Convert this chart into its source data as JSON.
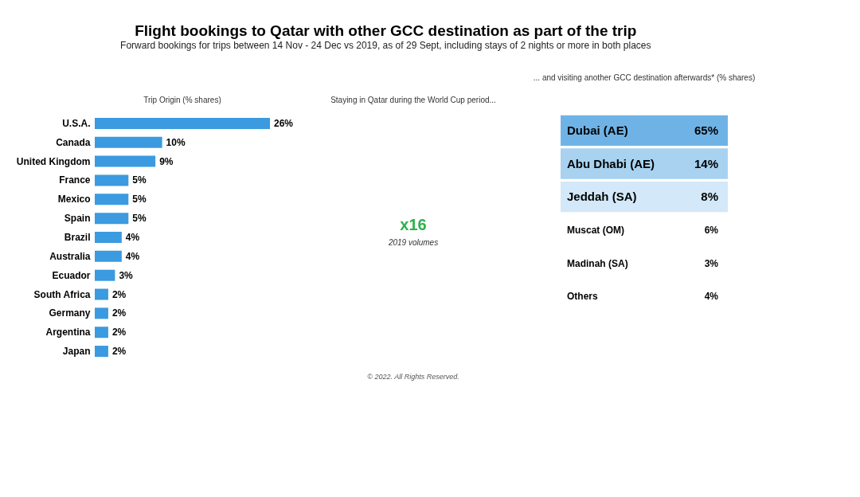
{
  "chart_data": [
    {
      "type": "bar",
      "orientation": "horizontal",
      "title": "Flight bookings to Qatar with other GCC destination as part of the trip",
      "subtitle": "Forward bookings for trips between 14 Nov - 24 Dec vs 2019, as of 29 Sept, including stays of 2 nights or more in both places",
      "xlabel": "Trip Origin (% shares)",
      "categories": [
        "U.S.A.",
        "Canada",
        "United Kingdom",
        "France",
        "Mexico",
        "Spain",
        "Brazil",
        "Australia",
        "Ecuador",
        "South Africa",
        "Germany",
        "Argentina",
        "Japan"
      ],
      "values": [
        26,
        10,
        9,
        5,
        5,
        5,
        4,
        4,
        3,
        2,
        2,
        2,
        2
      ],
      "value_labels": [
        "26%",
        "10%",
        "9%",
        "5%",
        "5%",
        "5%",
        "4%",
        "4%",
        "3%",
        "2%",
        "2%",
        "2%",
        "2%"
      ],
      "color": "#3b9ae0"
    },
    {
      "type": "other",
      "title": "Staying in Qatar during the World Cup period...",
      "annotations": [
        "x16",
        "2019 volumes",
        "© 2022. All Rights Reserved."
      ]
    },
    {
      "type": "other",
      "title": "... and visiting another GCC destination afterwards* (% shares)",
      "categories": [
        "Dubai (AE)",
        "Abu Dhabi (AE)",
        "Jeddah (SA)",
        "Muscat (OM)",
        "Madinah (SA)",
        "Others"
      ],
      "values": [
        65,
        14,
        8,
        6,
        3,
        4
      ],
      "value_labels": [
        "65%",
        "14%",
        "8%",
        "6%",
        "3%",
        "4%"
      ],
      "colors": [
        "#6fb3e6",
        "#a8d2f0",
        "#d3e8f8",
        "#ffffff",
        "#ffffff",
        "#ffffff"
      ]
    }
  ]
}
